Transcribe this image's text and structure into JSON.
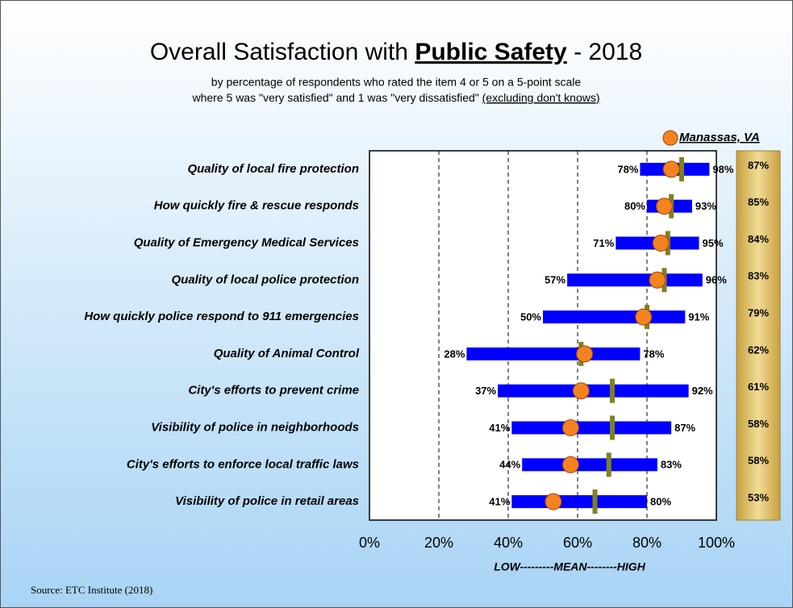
{
  "chart_data": {
    "type": "range",
    "title": "Overall Satisfaction with",
    "title_emphasis": "Public Safety",
    "title_suffix": "- 2018",
    "subtitle": [
      "by percentage of respondents who rated the item 4 or 5 on a 5-point scale",
      "where 5 was \"very satisfied\" and 1 was \"very dissatisfied\"",
      "(excluding don't knows)"
    ],
    "xlabel": "LOW---------MEAN--------HIGH",
    "source": "Source:  ETC Institute (2018)",
    "categories": [
      "Quality of local fire protection",
      "How quickly fire & rescue responds",
      "Quality of Emergency Medical Services",
      "Quality of local police protection",
      "How quickly police respond to 911 emergencies",
      "Quality of Animal Control",
      "City's efforts to prevent crime",
      "Visibility of police in neighborhoods",
      "City's efforts to enforce local traffic laws",
      "Visibility of police in retail areas"
    ],
    "low": {
      "values": [
        78,
        80,
        71,
        57,
        50,
        28,
        37,
        41,
        44,
        41
      ],
      "value_labels": [
        "78%",
        "80%",
        "71%",
        "57%",
        "50%",
        "28%",
        "37%",
        "41%",
        "44%",
        "41%"
      ],
      "color": "#0000ff"
    },
    "high": {
      "values": [
        98,
        93,
        95,
        96,
        91,
        78,
        92,
        87,
        83,
        80
      ],
      "value_labels": [
        "98%",
        "93%",
        "95%",
        "96%",
        "91%",
        "78%",
        "92%",
        "87%",
        "83%",
        "80%"
      ]
    },
    "mean": {
      "values": [
        90,
        87,
        86,
        85,
        80,
        61,
        70,
        70,
        69,
        65
      ],
      "color": "#808020"
    },
    "manassas": {
      "name": "Manassas, VA",
      "values": [
        87,
        85,
        84,
        83,
        79,
        62,
        61,
        58,
        58,
        53
      ],
      "value_labels": [
        "87%",
        "85%",
        "84%",
        "83%",
        "79%",
        "62%",
        "61%",
        "58%",
        "58%",
        "53%"
      ],
      "color": "#f58220"
    },
    "xlim": [
      0,
      100
    ],
    "xticks": [
      {
        "value": 0,
        "label": "0%"
      },
      {
        "value": 20,
        "label": "20%"
      },
      {
        "value": 40,
        "label": "40%"
      },
      {
        "value": 60,
        "label": "60%"
      },
      {
        "value": 80,
        "label": "80%"
      },
      {
        "value": 100,
        "label": "100%"
      }
    ],
    "grid": true
  }
}
